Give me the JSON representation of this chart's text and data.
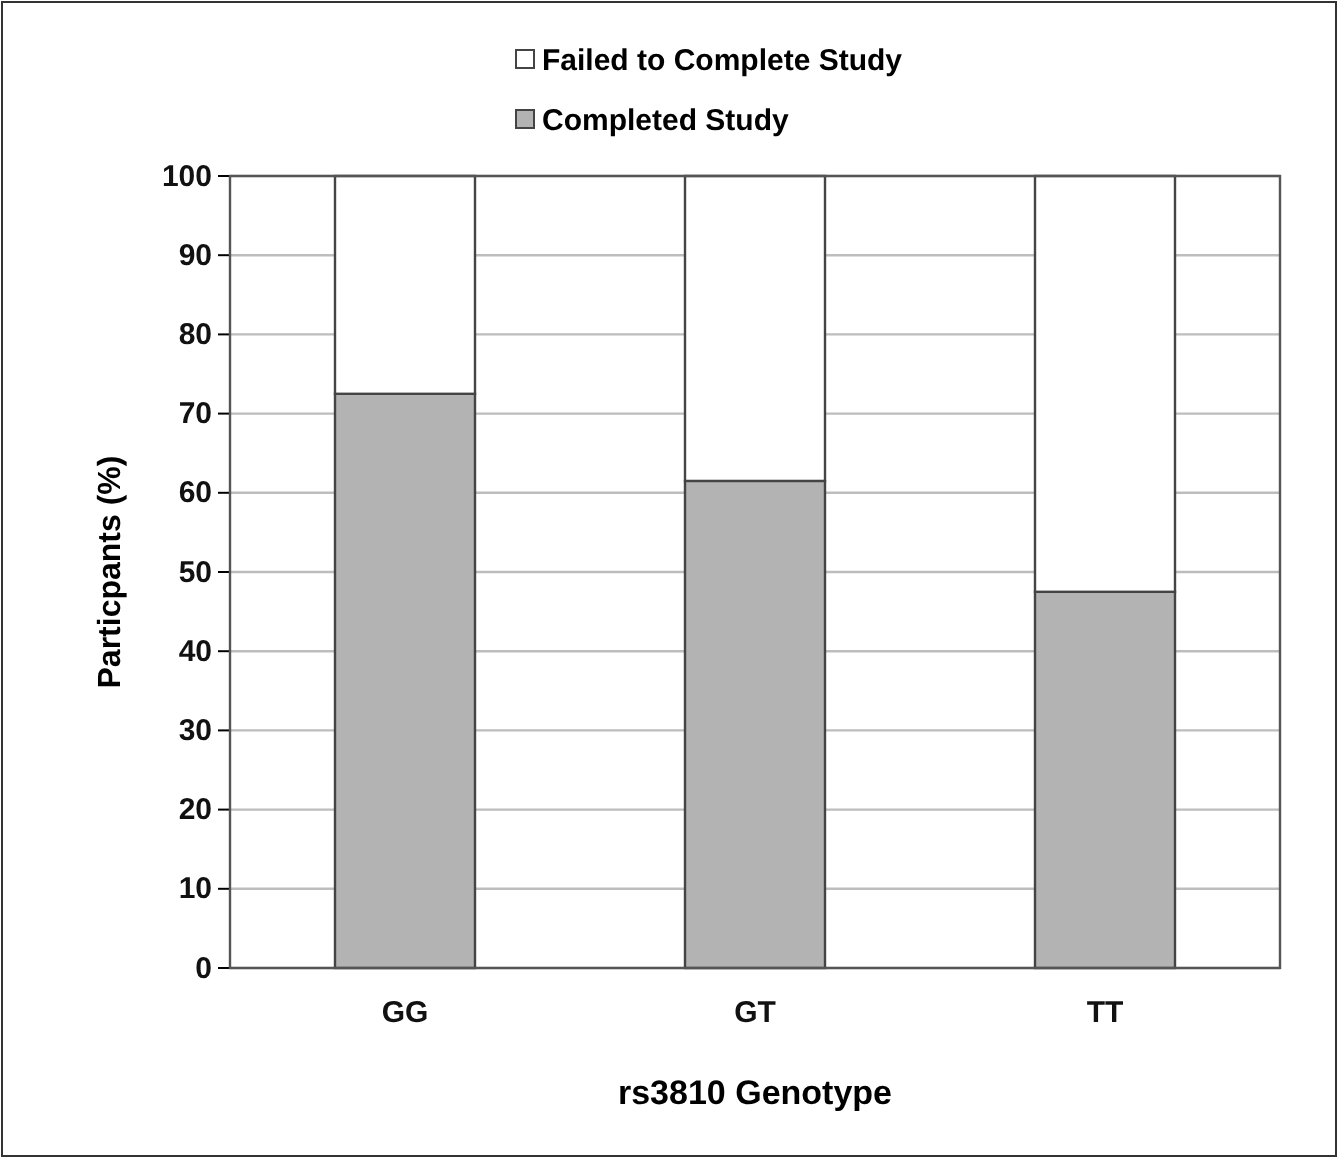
{
  "chart_data": {
    "type": "bar",
    "stacked": true,
    "xlabel": "rs3810 Genotype",
    "ylabel": "Particpants (%)",
    "categories": [
      "GG",
      "GT",
      "TT"
    ],
    "series": [
      {
        "name": "Completed Study",
        "color": "#b3b3b3",
        "values": [
          72.5,
          61.5,
          47.5
        ]
      },
      {
        "name": "Failed to Complete Study",
        "color": "#ffffff",
        "values": [
          27.5,
          38.5,
          52.5
        ]
      }
    ],
    "ylim": [
      0,
      100
    ],
    "yticks": [
      0,
      10,
      20,
      30,
      40,
      50,
      60,
      70,
      80,
      90,
      100
    ],
    "grid": "y",
    "legend": "top"
  }
}
